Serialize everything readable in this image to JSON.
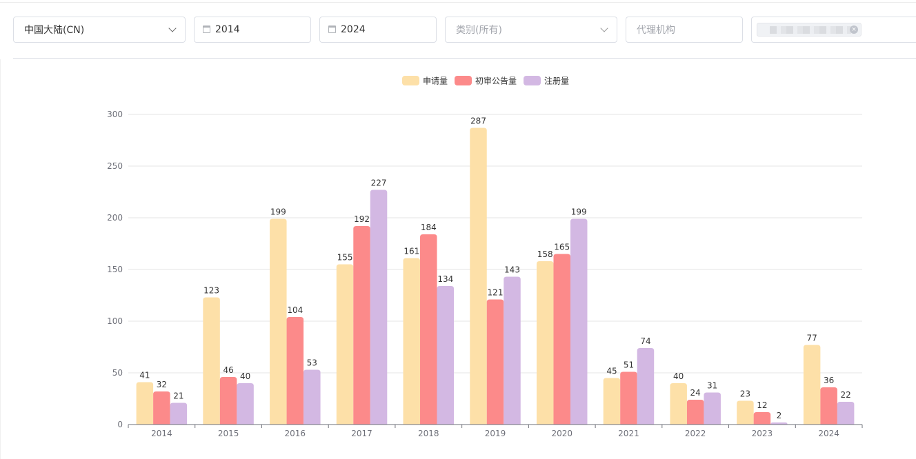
{
  "filters": {
    "region": "中国大陆(CN)",
    "start_year": "2014",
    "end_year": "2024",
    "category_placeholder": "类别(所有)",
    "agency_placeholder": "代理机构"
  },
  "colors": {
    "application": "#fde0a8",
    "preliminary": "#fc8a8a",
    "registration": "#d3b8e3",
    "grid": "#e6e6e6",
    "axis": "#6e7079"
  },
  "chart_data": {
    "type": "bar",
    "categories": [
      "2014",
      "2015",
      "2016",
      "2017",
      "2018",
      "2019",
      "2020",
      "2021",
      "2022",
      "2023",
      "2024"
    ],
    "series": [
      {
        "name": "申请量",
        "values": [
          41,
          123,
          199,
          155,
          161,
          287,
          158,
          45,
          40,
          23,
          77
        ]
      },
      {
        "name": "初审公告量",
        "values": [
          32,
          46,
          104,
          192,
          184,
          121,
          165,
          51,
          24,
          12,
          36
        ]
      },
      {
        "name": "注册量",
        "values": [
          21,
          40,
          53,
          227,
          134,
          143,
          199,
          74,
          31,
          2,
          22
        ]
      }
    ],
    "ylim": [
      0,
      300
    ],
    "yticks": [
      0,
      50,
      100,
      150,
      200,
      250,
      300
    ],
    "legend_position": "top-center",
    "grid": true
  }
}
